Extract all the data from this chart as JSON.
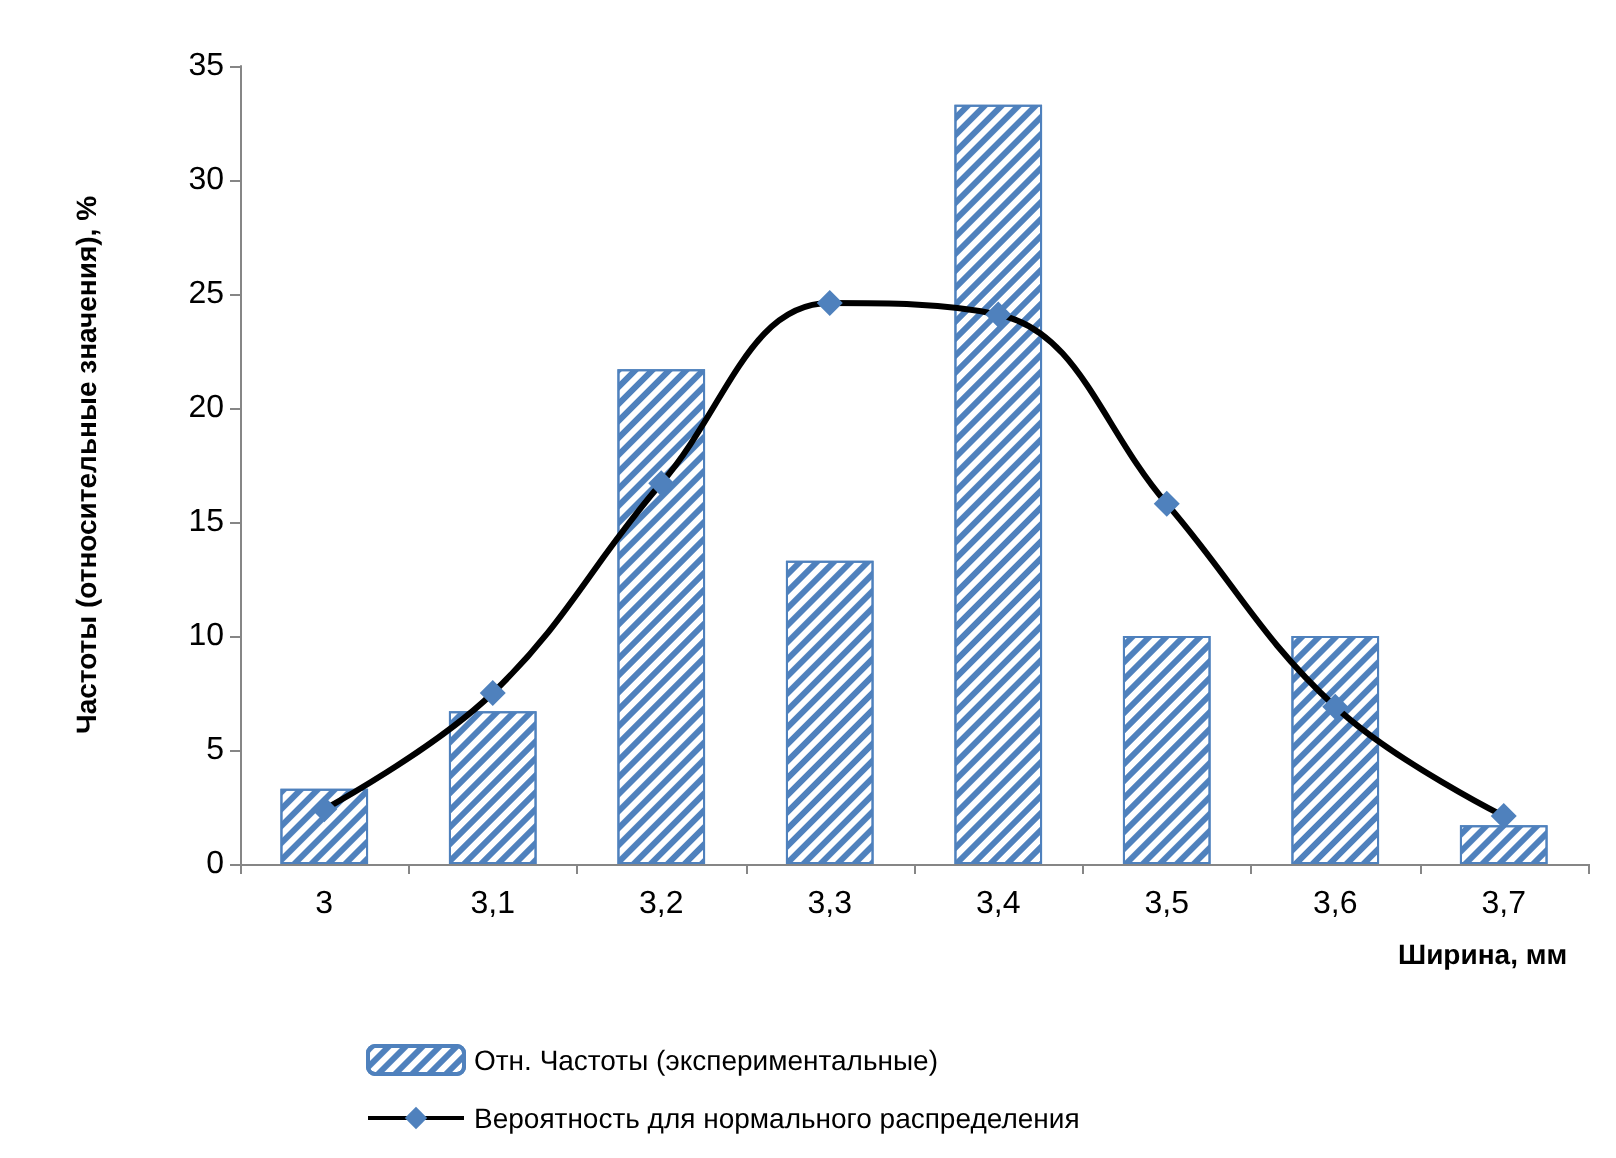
{
  "chart_data": {
    "type": "bar",
    "ylabel": "Частоты (относительные значения), %",
    "xlabel": "Ширина, мм",
    "categories": [
      "3",
      "3,1",
      "3,2",
      "3,3",
      "3,4",
      "3,5",
      "3,6",
      "3,7"
    ],
    "ylim": [
      0,
      35
    ],
    "yticks": [
      0,
      5,
      10,
      15,
      20,
      25,
      30,
      35
    ],
    "grid": false,
    "legend": "bottom",
    "marker": "diamond",
    "line_style": "solid",
    "series": [
      {
        "name": "Отн. Частоты (экспериментальные)",
        "color": "#4f81bd",
        "values": [
          3.3,
          6.7,
          21.7,
          13.3,
          33.3,
          10,
          10,
          1.7
        ]
      },
      {
        "type": "line",
        "name": "Вероятность для нормального распределения",
        "color": "#000000",
        "colors": [
          "#4f81bd",
          "#4f81bd",
          "#4f81bd",
          "#4f81bd",
          "#4f81bd",
          "#4f81bd",
          "#4f81bd",
          "#4f81bd"
        ],
        "values": [
          2.4,
          7.5,
          16.7,
          24.6,
          24.1,
          15.8,
          6.9,
          2.1
        ]
      }
    ]
  }
}
